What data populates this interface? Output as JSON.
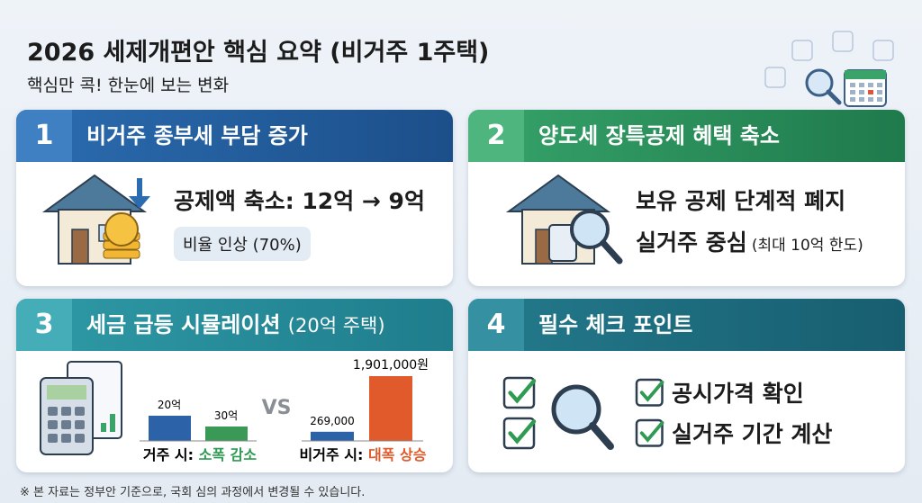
{
  "header": {
    "title": "2026 세제개편안 핵심 요약 (비거주 1주택)",
    "subtitle": "핵심만 콕! 한눈에 보는 변화"
  },
  "cards": [
    {
      "number": "1",
      "title": "비거주 종부세 부담 증가",
      "lines": [
        "공제액 축소: 12억 → 9억"
      ],
      "badge": "비율 인상 (70%)"
    },
    {
      "number": "2",
      "title": "양도세 장특공제 혜택 축소",
      "lines": [
        "보유 공제 단계적 폐지",
        "실거주 중심"
      ],
      "note": "(최대 10억 한도)"
    },
    {
      "number": "3",
      "title": "세금 급등 시뮬레이션",
      "title_note": "(20억 주택)",
      "simulation": {
        "residence": {
          "labels": [
            "20억",
            "30억"
          ],
          "caption": "거주 시:",
          "result": "소폭 감소"
        },
        "vs": "VS",
        "non_residence": {
          "values": [
            269000,
            1901000
          ],
          "value_labels": [
            "269,000",
            "1,901,000원"
          ],
          "caption": "비거주 시:",
          "result": "대폭 상승"
        }
      }
    },
    {
      "number": "4",
      "title": "필수 체크 포인트",
      "items": [
        "공시가격 확인",
        "실거주 기간 계산"
      ]
    }
  ],
  "footnote": "※ 본 자료는 정부안 기준으로, 국회 심의 과정에서 변경될 수 있습니다."
}
